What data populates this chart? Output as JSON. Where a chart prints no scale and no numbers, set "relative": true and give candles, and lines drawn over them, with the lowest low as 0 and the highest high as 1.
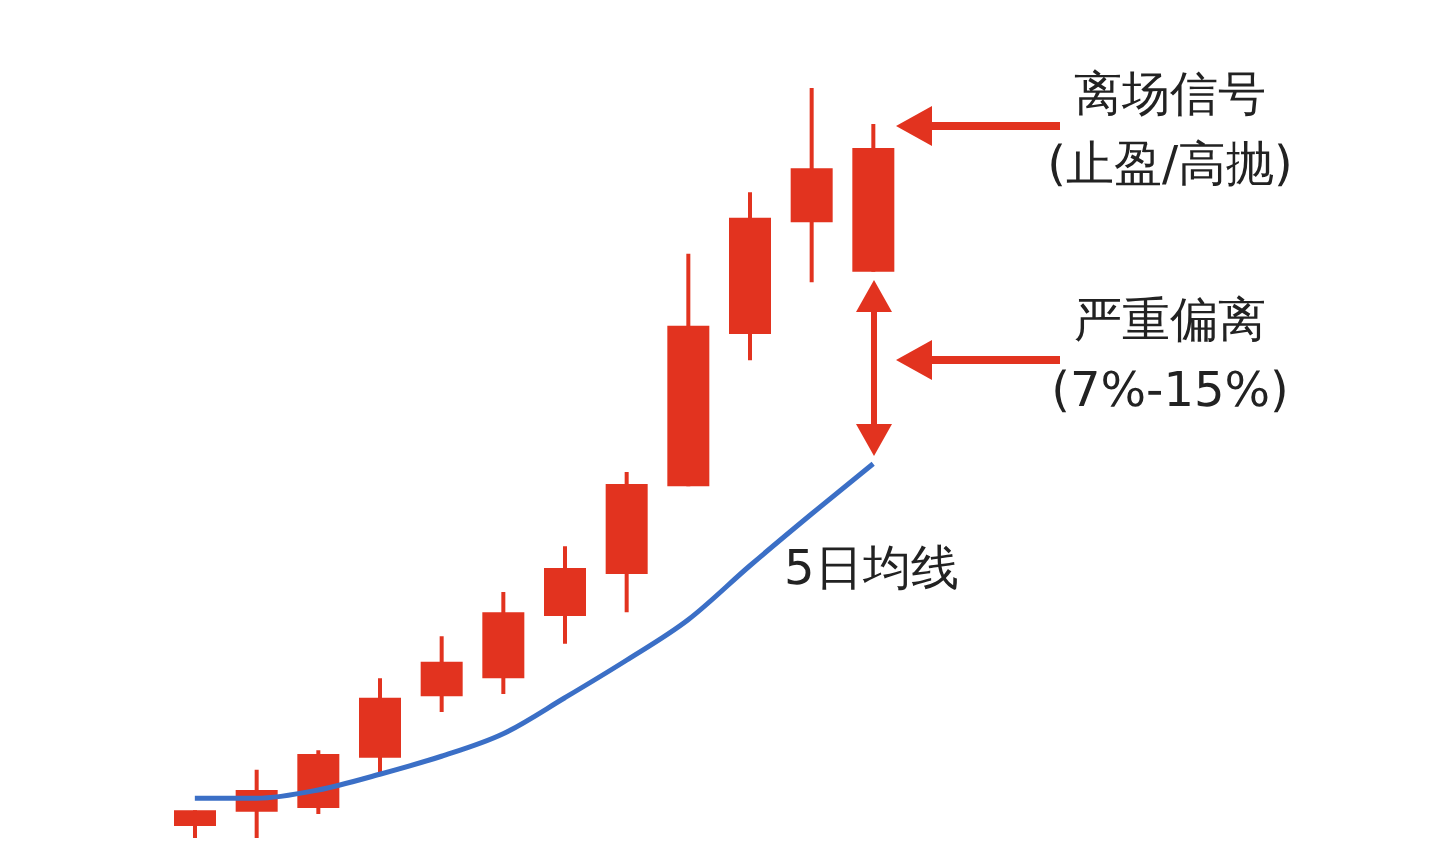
{
  "chart_data": {
    "type": "candlestick",
    "relative": true,
    "color": "#e2331f",
    "categories": [
      null,
      null,
      null,
      null,
      null,
      null,
      null,
      null,
      null,
      null,
      null,
      null
    ],
    "ohlc": [
      [
        0.016,
        0.037,
        0,
        0.037
      ],
      [
        0.035,
        0.091,
        0,
        0.064
      ],
      [
        0.04,
        0.117,
        0.032,
        0.112
      ],
      [
        0.107,
        0.213,
        0.085,
        0.187
      ],
      [
        0.189,
        0.269,
        0.168,
        0.235
      ],
      [
        0.213,
        0.328,
        0.192,
        0.301
      ],
      [
        0.296,
        0.389,
        0.259,
        0.36
      ],
      [
        0.352,
        0.488,
        0.301,
        0.472
      ],
      [
        0.469,
        0.779,
        0.469,
        0.683
      ],
      [
        0.672,
        0.861,
        0.637,
        0.827
      ],
      [
        0.821,
        1,
        0.741,
        0.893
      ],
      [
        0.755,
        0.952,
        0.755,
        0.92
      ]
    ],
    "series": [
      {
        "type": "line",
        "name": "5日均线",
        "color": "#3b6fc6",
        "values": [
          0.053,
          0.053,
          0.064,
          0.085,
          0.109,
          0.139,
          0.187,
          0.237,
          0.291,
          0.363,
          0.432,
          0.499
        ]
      }
    ],
    "annotations": [
      "离场信号\n(止盈/高抛)",
      "严重偏离\n(7%-15%)"
    ]
  }
}
